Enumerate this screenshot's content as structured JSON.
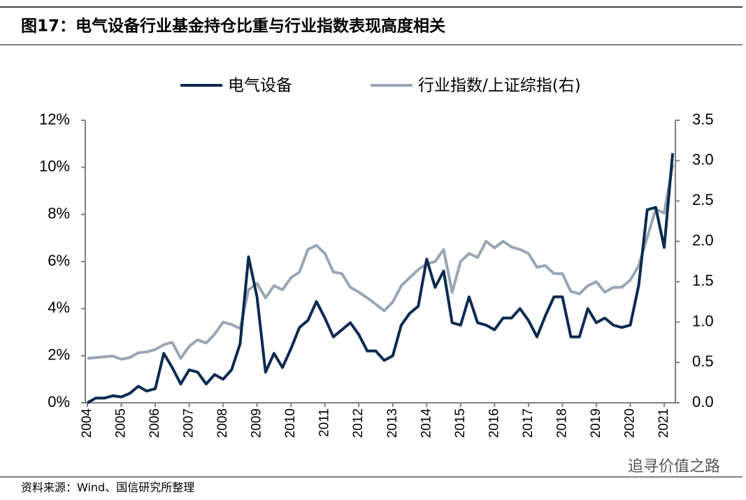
{
  "chart_data": {
    "type": "line",
    "title": "图17：电气设备行业基金持仓比重与行业指数表现高度相关",
    "source": "资料来源：Wind、国信研究所整理",
    "watermark": "追寻价值之路",
    "x": [
      2004,
      2004.25,
      2004.5,
      2004.75,
      2005,
      2005.25,
      2005.5,
      2005.75,
      2006,
      2006.25,
      2006.5,
      2006.75,
      2007,
      2007.25,
      2007.5,
      2007.75,
      2008,
      2008.25,
      2008.5,
      2008.75,
      2009,
      2009.25,
      2009.5,
      2009.75,
      2010,
      2010.25,
      2010.5,
      2010.75,
      2011,
      2011.25,
      2011.5,
      2011.75,
      2012,
      2012.25,
      2012.5,
      2012.75,
      2013,
      2013.25,
      2013.5,
      2013.75,
      2014,
      2014.25,
      2014.5,
      2014.75,
      2015,
      2015.25,
      2015.5,
      2015.75,
      2016,
      2016.25,
      2016.5,
      2016.75,
      2017,
      2017.25,
      2017.5,
      2017.75,
      2018,
      2018.25,
      2018.5,
      2018.75,
      2019,
      2019.25,
      2019.5,
      2019.75,
      2020,
      2020.25,
      2020.5,
      2020.75,
      2021,
      2021.25
    ],
    "xlim": [
      2004,
      2021.33
    ],
    "xticks": [
      2004,
      2005,
      2006,
      2007,
      2008,
      2009,
      2010,
      2011,
      2012,
      2013,
      2014,
      2015,
      2016,
      2017,
      2018,
      2019,
      2020,
      2021
    ],
    "ylim": [
      0,
      12
    ],
    "yticks": [
      {
        "value": 0,
        "label": "0%"
      },
      {
        "value": 2,
        "label": "2%"
      },
      {
        "value": 4,
        "label": "4%"
      },
      {
        "value": 6,
        "label": "6%"
      },
      {
        "value": 8,
        "label": "8%"
      },
      {
        "value": 10,
        "label": "10%"
      },
      {
        "value": 12,
        "label": "12%"
      }
    ],
    "y2lim": [
      0,
      3.5
    ],
    "y2ticks": [
      {
        "value": 0,
        "label": "0.0"
      },
      0.5,
      {
        "value": 1,
        "label": "1.0"
      },
      1.5,
      {
        "value": 2,
        "label": "2.0"
      },
      2.5,
      {
        "value": 3,
        "label": "3.0"
      },
      3.5
    ],
    "series": [
      {
        "name": "电气设备",
        "color": "#0c2a50",
        "values": [
          0,
          0.2,
          0.2,
          0.3,
          0.25,
          0.4,
          0.7,
          0.5,
          0.6,
          2.1,
          1.5,
          0.8,
          1.4,
          1.3,
          0.8,
          1.2,
          1.0,
          1.4,
          2.5,
          6.2,
          4.5,
          1.3,
          2.1,
          1.5,
          2.3,
          3.2,
          3.5,
          4.3,
          3.6,
          2.8,
          3.1,
          3.4,
          2.9,
          2.2,
          2.2,
          1.8,
          2.0,
          3.3,
          3.8,
          4.1,
          6.1,
          4.9,
          5.6,
          3.4,
          3.3,
          4.5,
          3.4,
          3.3,
          3.1,
          3.6,
          3.6,
          4.0,
          3.5,
          2.8,
          3.7,
          4.5,
          4.5,
          2.8,
          2.8,
          4.0,
          3.4,
          3.6,
          3.3,
          3.2,
          3.3,
          5.0,
          8.2,
          8.3,
          6.6,
          10.6
        ]
      },
      {
        "name": "行业指数/上证综指(右)",
        "color": "#98a5b3",
        "axis": "y2",
        "values": [
          0.55,
          0.56,
          0.57,
          0.58,
          0.54,
          0.56,
          0.62,
          0.63,
          0.66,
          0.72,
          0.75,
          0.55,
          0.7,
          0.78,
          0.74,
          0.85,
          1.0,
          0.97,
          0.92,
          1.4,
          1.48,
          1.3,
          1.45,
          1.4,
          1.55,
          1.62,
          1.9,
          1.95,
          1.85,
          1.62,
          1.6,
          1.43,
          1.37,
          1.3,
          1.22,
          1.14,
          1.25,
          1.45,
          1.55,
          1.65,
          1.72,
          1.75,
          1.9,
          1.37,
          1.75,
          1.85,
          1.8,
          2.0,
          1.92,
          2.0,
          1.93,
          1.9,
          1.85,
          1.68,
          1.7,
          1.6,
          1.6,
          1.38,
          1.35,
          1.45,
          1.5,
          1.37,
          1.43,
          1.43,
          1.52,
          1.7,
          2.05,
          2.4,
          2.35,
          2.95
        ]
      }
    ]
  }
}
